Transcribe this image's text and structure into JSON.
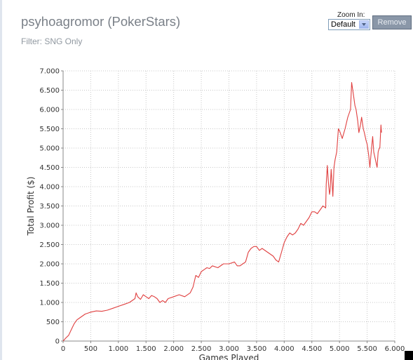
{
  "header": {
    "title": "psyhoagromor (PokerStars)",
    "filter": "Filter: SNG Only"
  },
  "zoom": {
    "label": "Zoom In:",
    "selected": "Default"
  },
  "remove_label": "Remove",
  "colors": {
    "line": "#e04040",
    "grid": "#c8c8c8",
    "axis": "#888888"
  },
  "chart_data": {
    "type": "line",
    "title": "",
    "xlabel": "Games Played",
    "ylabel": "Total Profit ($)",
    "xlim": [
      0,
      6000
    ],
    "ylim": [
      0,
      7000
    ],
    "x_ticks": [
      0,
      500,
      1000,
      1500,
      2000,
      2500,
      3000,
      3500,
      4000,
      4500,
      5000,
      5500,
      6000
    ],
    "x_tick_labels": [
      "0",
      "500",
      "1.000",
      "1.500",
      "2.000",
      "2.500",
      "3.000",
      "3.500",
      "4.000",
      "4.500",
      "5.000",
      "5.500",
      "6.000"
    ],
    "y_ticks": [
      0,
      500,
      1000,
      1500,
      2000,
      2500,
      3000,
      3500,
      4000,
      4500,
      5000,
      5500,
      6000,
      6500,
      7000
    ],
    "y_tick_labels": [
      "0",
      "500",
      "1.000",
      "1.500",
      "2.000",
      "2.500",
      "3.000",
      "3.500",
      "4.000",
      "4.500",
      "5.000",
      "5.500",
      "6.000",
      "6.500",
      "7.000"
    ],
    "grid": true,
    "series": [
      {
        "x": [
          0,
          50,
          100,
          150,
          200,
          250,
          300,
          400,
          500,
          600,
          700,
          800,
          900,
          1000,
          1100,
          1200,
          1300,
          1320,
          1350,
          1400,
          1450,
          1500,
          1550,
          1600,
          1650,
          1700,
          1750,
          1800,
          1850,
          1900,
          2000,
          2100,
          2200,
          2300,
          2350,
          2400,
          2450,
          2500,
          2550,
          2600,
          2650,
          2700,
          2800,
          2900,
          3000,
          3100,
          3150,
          3200,
          3250,
          3300,
          3350,
          3400,
          3450,
          3500,
          3550,
          3600,
          3700,
          3800,
          3850,
          3900,
          3950,
          4000,
          4050,
          4100,
          4150,
          4200,
          4250,
          4300,
          4350,
          4400,
          4450,
          4500,
          4550,
          4600,
          4650,
          4700,
          4750,
          4760,
          4780,
          4800,
          4820,
          4830,
          4850,
          4870,
          4880,
          4900,
          4920,
          4950,
          4980,
          5000,
          5050,
          5100,
          5150,
          5200,
          5220,
          5250,
          5280,
          5300,
          5330,
          5350,
          5380,
          5400,
          5430,
          5450,
          5480,
          5500,
          5530,
          5550,
          5580,
          5600,
          5620,
          5650,
          5680,
          5700,
          5720,
          5730,
          5750,
          5760
        ],
        "y": [
          0,
          80,
          150,
          300,
          450,
          550,
          600,
          700,
          750,
          780,
          770,
          800,
          850,
          900,
          950,
          1000,
          1100,
          1250,
          1150,
          1080,
          1200,
          1150,
          1100,
          1180,
          1150,
          1100,
          1000,
          1050,
          1000,
          1100,
          1150,
          1200,
          1150,
          1250,
          1400,
          1700,
          1650,
          1800,
          1850,
          1900,
          1880,
          1950,
          1900,
          2000,
          2000,
          2050,
          1950,
          1950,
          2000,
          2050,
          2300,
          2400,
          2450,
          2450,
          2350,
          2400,
          2300,
          2200,
          2100,
          2050,
          2300,
          2550,
          2700,
          2800,
          2750,
          2800,
          2900,
          3050,
          3000,
          3100,
          3200,
          3350,
          3350,
          3300,
          3400,
          3500,
          3450,
          4050,
          4550,
          4100,
          3800,
          3900,
          4450,
          4000,
          3750,
          4500,
          4700,
          4900,
          5500,
          5450,
          5250,
          5500,
          5800,
          6000,
          6700,
          6400,
          6100,
          6000,
          5700,
          5400,
          5600,
          5800,
          5500,
          5400,
          5200,
          5100,
          4800,
          4500,
          5000,
          5300,
          4900,
          4700,
          4500,
          4900,
          5000,
          5000,
          5600,
          5400
        ]
      }
    ]
  }
}
